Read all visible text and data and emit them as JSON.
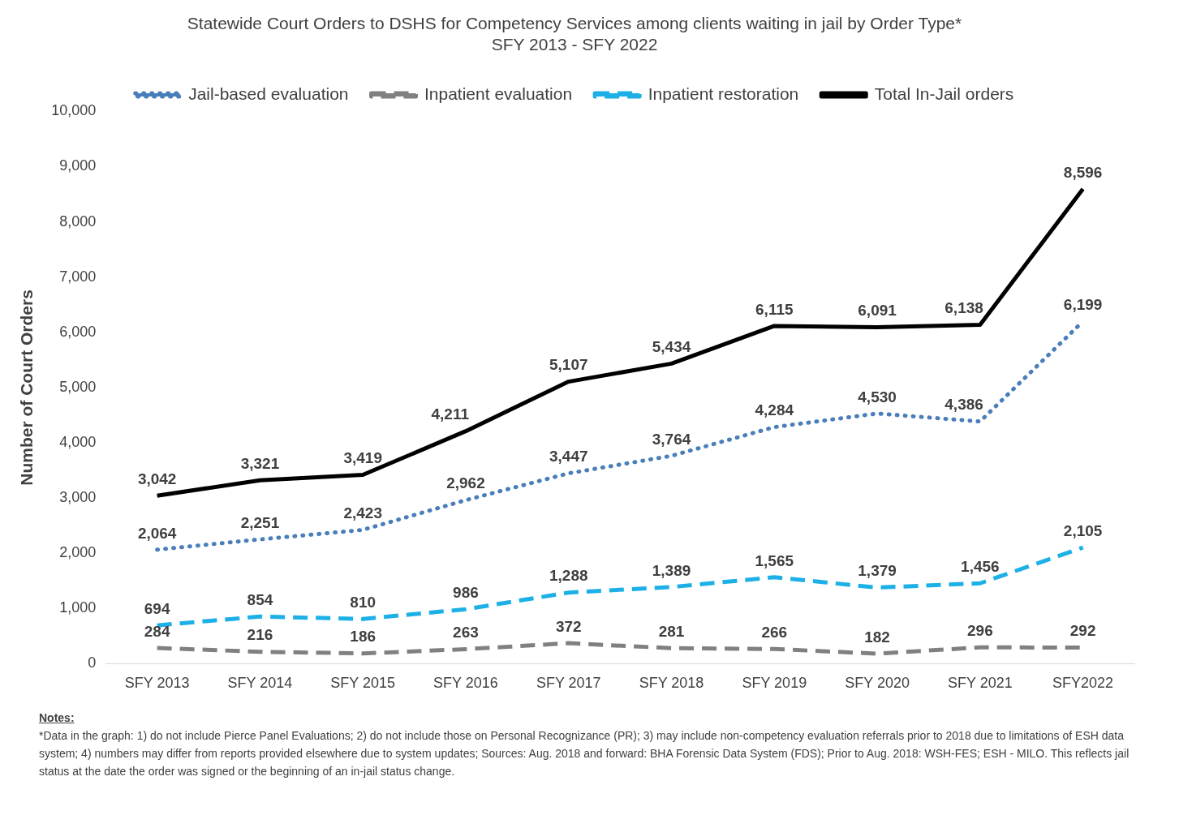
{
  "chart_data": {
    "type": "line",
    "title": "Statewide Court Orders to DSHS for Competency Services among clients waiting in jail by Order Type*",
    "subtitle": "SFY 2013 - SFY 2022",
    "ylabel": "Number of Court Orders",
    "categories": [
      "SFY 2013",
      "SFY 2014",
      "SFY 2015",
      "SFY 2016",
      "SFY 2017",
      "SFY 2018",
      "SFY 2019",
      "SFY 2020",
      "SFY 2021",
      "SFY2022"
    ],
    "series": [
      {
        "name": "Jail-based evaluation",
        "color": "#4a7ebb",
        "line_style": "dotted",
        "values": [
          2064,
          2251,
          2423,
          2962,
          3447,
          3764,
          4284,
          4530,
          4386,
          6199
        ],
        "value_labels": [
          "2,064",
          "2,251",
          "2,423",
          "2,962",
          "3,447",
          "3,764",
          "4,284",
          "4,530",
          "4,386",
          "6,199"
        ]
      },
      {
        "name": "Inpatient evaluation",
        "color": "#808080",
        "line_style": "dashed",
        "values": [
          284,
          216,
          186,
          263,
          372,
          281,
          266,
          182,
          296,
          292
        ],
        "value_labels": [
          "284",
          "216",
          "186",
          "263",
          "372",
          "281",
          "266",
          "182",
          "296",
          "292"
        ]
      },
      {
        "name": "Inpatient restoration",
        "color": "#1cb0e6",
        "line_style": "dashed",
        "values": [
          694,
          854,
          810,
          986,
          1288,
          1389,
          1565,
          1379,
          1456,
          2105
        ],
        "value_labels": [
          "694",
          "854",
          "810",
          "986",
          "1,288",
          "1,389",
          "1,565",
          "1,379",
          "1,456",
          "2,105"
        ]
      },
      {
        "name": "Total In-Jail orders",
        "color": "#000000",
        "line_style": "solid",
        "values": [
          3042,
          3321,
          3419,
          4211,
          5107,
          5434,
          6115,
          6091,
          6138,
          8596
        ],
        "value_labels": [
          "3,042",
          "3,321",
          "3,419",
          "4,211",
          "5,107",
          "5,434",
          "6,115",
          "6,091",
          "6,138",
          "8,596"
        ]
      }
    ],
    "ylim": [
      0,
      10000
    ],
    "yticks": [
      {
        "value": 0,
        "label": "0"
      },
      {
        "value": 1000,
        "label": "1,000"
      },
      {
        "value": 2000,
        "label": "2,000"
      },
      {
        "value": 3000,
        "label": "3,000"
      },
      {
        "value": 4000,
        "label": "4,000"
      },
      {
        "value": 5000,
        "label": "5,000"
      },
      {
        "value": 6000,
        "label": "6,000"
      },
      {
        "value": 7000,
        "label": "7,000"
      },
      {
        "value": 8000,
        "label": "8,000"
      },
      {
        "value": 9000,
        "label": "9,000"
      },
      {
        "value": 10000,
        "label": "10,000"
      }
    ],
    "grid": false,
    "legend": "top",
    "marker": "none",
    "annotations": [
      "Notes:",
      "*Data in the graph: 1) do not include Pierce Panel Evaluations; 2) do not include those on Personal Recognizance (PR); 3) may include non-competency evaluation referrals prior to 2018 due to limitations of ESH data system; 4) numbers may differ from reports provided elsewhere due to system updates; Sources: Aug. 2018 and forward: BHA Forensic Data System (FDS); Prior to Aug. 2018: WSH-FES; ESH - MILO. This reflects jail status at the date the order was signed or the beginning of an in-jail status change."
    ]
  }
}
